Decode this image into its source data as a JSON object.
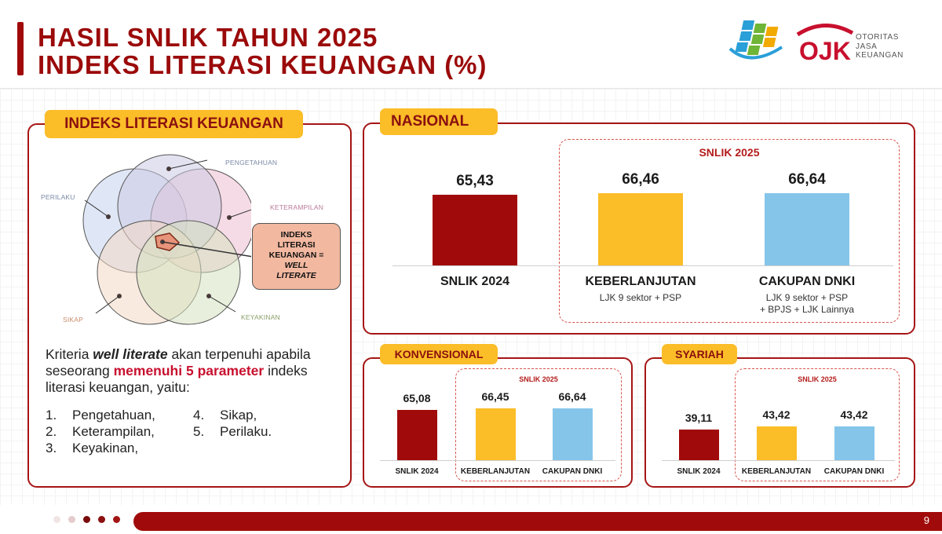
{
  "header": {
    "title_line1": "HASIL SNLIK TAHUN 2025",
    "title_line2": "INDEKS LITERASI KEUANGAN (%)",
    "ojk_text": [
      "OTORITAS",
      "JASA",
      "KEUANGAN"
    ],
    "ojk_mark": "OJK"
  },
  "left_panel": {
    "tag": "INDEKS LITERASI KEUANGAN",
    "venn_labels": {
      "pengetahuan": "PENGETAHUAN",
      "perilaku": "PERILAKU",
      "keterampilan": "KETERAMPILAN",
      "sikap": "SIKAP",
      "keyakinan": "KEYAKINAN"
    },
    "callout": [
      "INDEKS",
      "LITERASI",
      "KEUANGAN =",
      "WELL",
      "LITERATE"
    ],
    "criteria_1": "Kriteria ",
    "criteria_2": "well literate",
    "criteria_3": " akan terpenuhi apabila seseorang ",
    "criteria_4": "memenuhi 5 parameter",
    "criteria_5": " indeks literasi keuangan, yaitu:",
    "list_left": [
      {
        "num": "1.",
        "label": "Pengetahuan,"
      },
      {
        "num": "2.",
        "label": "Keterampilan,"
      },
      {
        "num": "3.",
        "label": "Keyakinan,"
      }
    ],
    "list_right": [
      {
        "num": "4.",
        "label": "Sikap,"
      },
      {
        "num": "5.",
        "label": "Perilaku."
      }
    ]
  },
  "nasional": {
    "tag": "NASIONAL",
    "group_label": "SNLIK 2025"
  },
  "konvensional": {
    "tag": "KONVENSIONAL",
    "group_label": "SNLIK 2025"
  },
  "syariah": {
    "tag": "SYARIAH",
    "group_label": "SNLIK 2025"
  },
  "footer": {
    "page": "9"
  },
  "chart_data": [
    {
      "type": "bar",
      "title": "NASIONAL",
      "categories": [
        "SNLIK 2024",
        "KEBERLANJUTAN",
        "CAKUPAN DNKI"
      ],
      "category_notes": [
        "",
        "LJK 9 sektor + PSP",
        "LJK 9 sektor + PSP\n+ BPJS + LJK Lainnya"
      ],
      "values": [
        65.43,
        66.46,
        66.64
      ],
      "value_labels": [
        "65,43",
        "66,46",
        "66,64"
      ],
      "colors": [
        "#a10a0a",
        "#fbbd28",
        "#85c5ea"
      ],
      "ylim": [
        0,
        70
      ]
    },
    {
      "type": "bar",
      "title": "KONVENSIONAL",
      "categories": [
        "SNLIK 2024",
        "KEBERLANJUTAN",
        "CAKUPAN DNKI"
      ],
      "values": [
        65.08,
        66.45,
        66.64
      ],
      "value_labels": [
        "65,08",
        "66,45",
        "66,64"
      ],
      "colors": [
        "#a10a0a",
        "#fbbd28",
        "#85c5ea"
      ],
      "ylim": [
        0,
        70
      ]
    },
    {
      "type": "bar",
      "title": "SYARIAH",
      "categories": [
        "SNLIK 2024",
        "KEBERLANJUTAN",
        "CAKUPAN DNKI"
      ],
      "values": [
        39.11,
        43.42,
        43.42
      ],
      "value_labels": [
        "39,11",
        "43,42",
        "43,42"
      ],
      "colors": [
        "#a10a0a",
        "#fbbd28",
        "#85c5ea"
      ],
      "ylim": [
        0,
        70
      ]
    }
  ]
}
